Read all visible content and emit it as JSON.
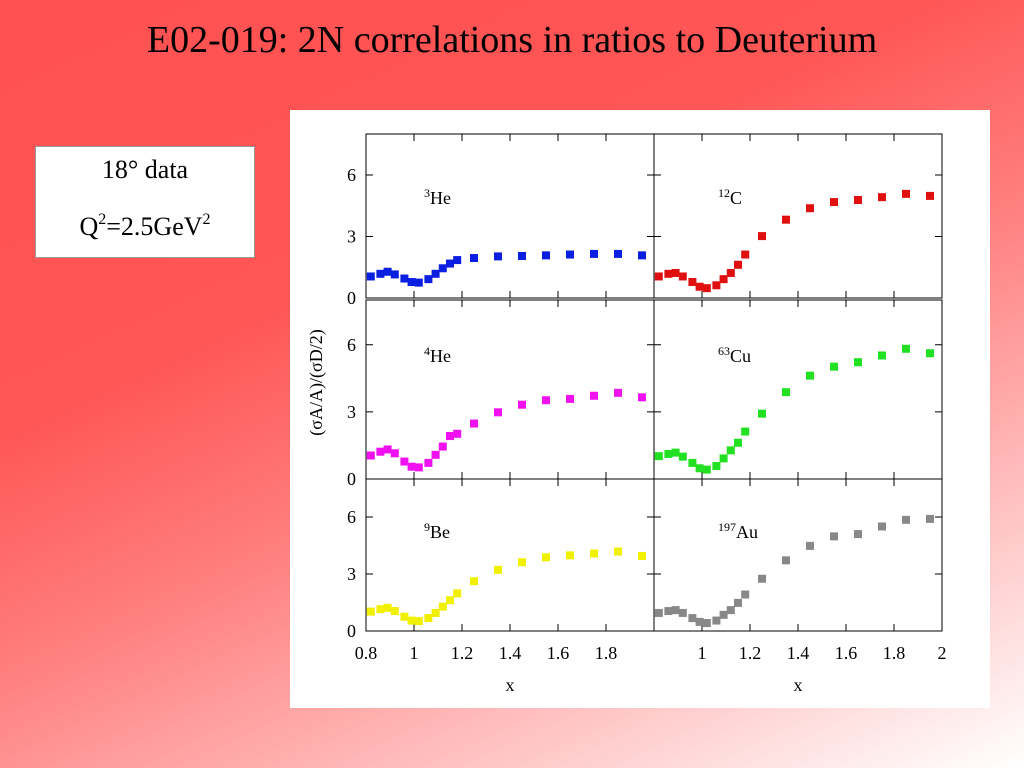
{
  "title": "E02-019: 2N correlations in ratios to Deuterium",
  "info": {
    "line1": "18° data",
    "q_base": "Q",
    "q_sup": "2",
    "q_mid": "=2.5GeV",
    "q_sup2": "2"
  },
  "chart_data": {
    "type": "scatter",
    "ylabel": "(σA/A)/(σD/2)",
    "xlabel": "x",
    "ylim": [
      0,
      8
    ],
    "yticks": [
      0,
      3,
      6
    ],
    "left_xlim": [
      0.8,
      2.0
    ],
    "left_xticks": [
      "0.8",
      "1",
      "1.2",
      "1.4",
      "1.6",
      "1.8"
    ],
    "right_xlim": [
      0.8,
      2.0
    ],
    "right_xticks": [
      "1",
      "1.2",
      "1.4",
      "1.6",
      "1.8",
      "2"
    ],
    "grid": false,
    "panels": [
      {
        "label_sup": "3",
        "label_main": "He",
        "color": "#0a1fe0",
        "col": 0,
        "row": 0,
        "x": [
          0.82,
          0.86,
          0.89,
          0.92,
          0.96,
          0.99,
          1.02,
          1.06,
          1.09,
          1.12,
          1.15,
          1.18,
          1.25,
          1.35,
          1.45,
          1.55,
          1.65,
          1.75,
          1.85,
          1.95
        ],
        "y": [
          1.05,
          1.18,
          1.28,
          1.15,
          0.95,
          0.78,
          0.75,
          0.92,
          1.18,
          1.45,
          1.68,
          1.85,
          1.95,
          2.03,
          2.05,
          2.08,
          2.12,
          2.15,
          2.15,
          2.08
        ]
      },
      {
        "label_sup": "12",
        "label_main": "C",
        "color": "#e01010",
        "col": 1,
        "row": 0,
        "x": [
          0.82,
          0.86,
          0.89,
          0.92,
          0.96,
          0.99,
          1.02,
          1.06,
          1.09,
          1.12,
          1.15,
          1.18,
          1.25,
          1.35,
          1.45,
          1.55,
          1.65,
          1.75,
          1.85,
          1.95
        ],
        "y": [
          1.05,
          1.18,
          1.22,
          1.05,
          0.78,
          0.55,
          0.48,
          0.62,
          0.92,
          1.22,
          1.62,
          2.12,
          3.02,
          3.82,
          4.38,
          4.68,
          4.78,
          4.92,
          5.08,
          4.98
        ]
      },
      {
        "label_sup": "4",
        "label_main": "He",
        "color": "#f010f0",
        "col": 0,
        "row": 1,
        "x": [
          0.82,
          0.86,
          0.89,
          0.92,
          0.96,
          0.99,
          1.02,
          1.06,
          1.09,
          1.12,
          1.15,
          1.18,
          1.25,
          1.35,
          1.45,
          1.55,
          1.65,
          1.75,
          1.85,
          1.95
        ],
        "y": [
          1.05,
          1.22,
          1.32,
          1.15,
          0.78,
          0.55,
          0.52,
          0.72,
          1.08,
          1.45,
          1.92,
          2.02,
          2.48,
          2.98,
          3.32,
          3.52,
          3.58,
          3.72,
          3.85,
          3.65
        ]
      },
      {
        "label_sup": "63",
        "label_main": "Cu",
        "color": "#22e022",
        "col": 1,
        "row": 1,
        "x": [
          0.82,
          0.86,
          0.89,
          0.92,
          0.96,
          0.99,
          1.02,
          1.06,
          1.09,
          1.12,
          1.15,
          1.18,
          1.25,
          1.35,
          1.45,
          1.55,
          1.65,
          1.75,
          1.85,
          1.95
        ],
        "y": [
          1.02,
          1.12,
          1.18,
          1.0,
          0.72,
          0.48,
          0.42,
          0.58,
          0.92,
          1.28,
          1.62,
          2.12,
          2.92,
          3.88,
          4.62,
          5.02,
          5.22,
          5.52,
          5.82,
          5.62
        ]
      },
      {
        "label_sup": "9",
        "label_main": "Be",
        "color": "#f0f000",
        "col": 0,
        "row": 2,
        "x": [
          0.82,
          0.86,
          0.89,
          0.92,
          0.96,
          0.99,
          1.02,
          1.06,
          1.09,
          1.12,
          1.15,
          1.18,
          1.25,
          1.35,
          1.45,
          1.55,
          1.65,
          1.75,
          1.85,
          1.95
        ],
        "y": [
          1.02,
          1.15,
          1.22,
          1.05,
          0.75,
          0.55,
          0.52,
          0.68,
          0.95,
          1.28,
          1.62,
          1.98,
          2.62,
          3.22,
          3.62,
          3.88,
          3.98,
          4.08,
          4.18,
          3.95
        ]
      },
      {
        "label_sup": "197",
        "label_main": "Au",
        "color": "#888888",
        "col": 1,
        "row": 2,
        "x": [
          0.82,
          0.86,
          0.89,
          0.92,
          0.96,
          0.99,
          1.02,
          1.06,
          1.09,
          1.12,
          1.15,
          1.18,
          1.25,
          1.35,
          1.45,
          1.55,
          1.65,
          1.75,
          1.85,
          1.95
        ],
        "y": [
          0.95,
          1.05,
          1.1,
          0.95,
          0.68,
          0.48,
          0.42,
          0.55,
          0.85,
          1.1,
          1.48,
          1.92,
          2.75,
          3.72,
          4.48,
          4.98,
          5.1,
          5.5,
          5.85,
          5.9
        ]
      }
    ]
  }
}
